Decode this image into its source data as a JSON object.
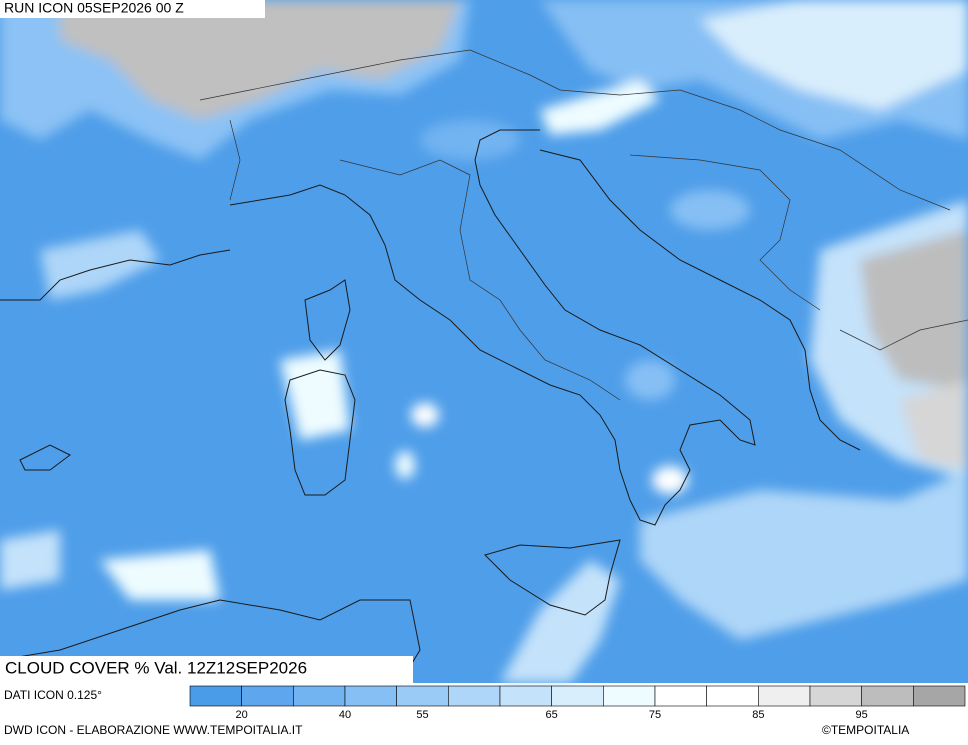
{
  "header": {
    "title": "RUN ICON 05SEP2026 00 Z"
  },
  "map": {
    "label": "CLOUD COVER % Val. 12Z12SEP2026"
  },
  "legend": {
    "source": "DATI ICON 0.125°",
    "colors": [
      "#4a9be8",
      "#5ea7ee",
      "#72b3f1",
      "#86bff4",
      "#9acbf6",
      "#aed6f8",
      "#c4e2fa",
      "#d9eefc",
      "#eefcff",
      "#ffffff",
      "#ffffff",
      "#efefef",
      "#d6d6d6",
      "#bdbdbd",
      "#a6a6a6"
    ],
    "ticks": [
      20,
      40,
      55,
      65,
      75,
      85,
      95
    ]
  },
  "footer": {
    "credit": "DWD ICON - ELABORAZIONE WWW.TEMPOITALIA.IT",
    "brand": "©TEMPOITALIA"
  }
}
